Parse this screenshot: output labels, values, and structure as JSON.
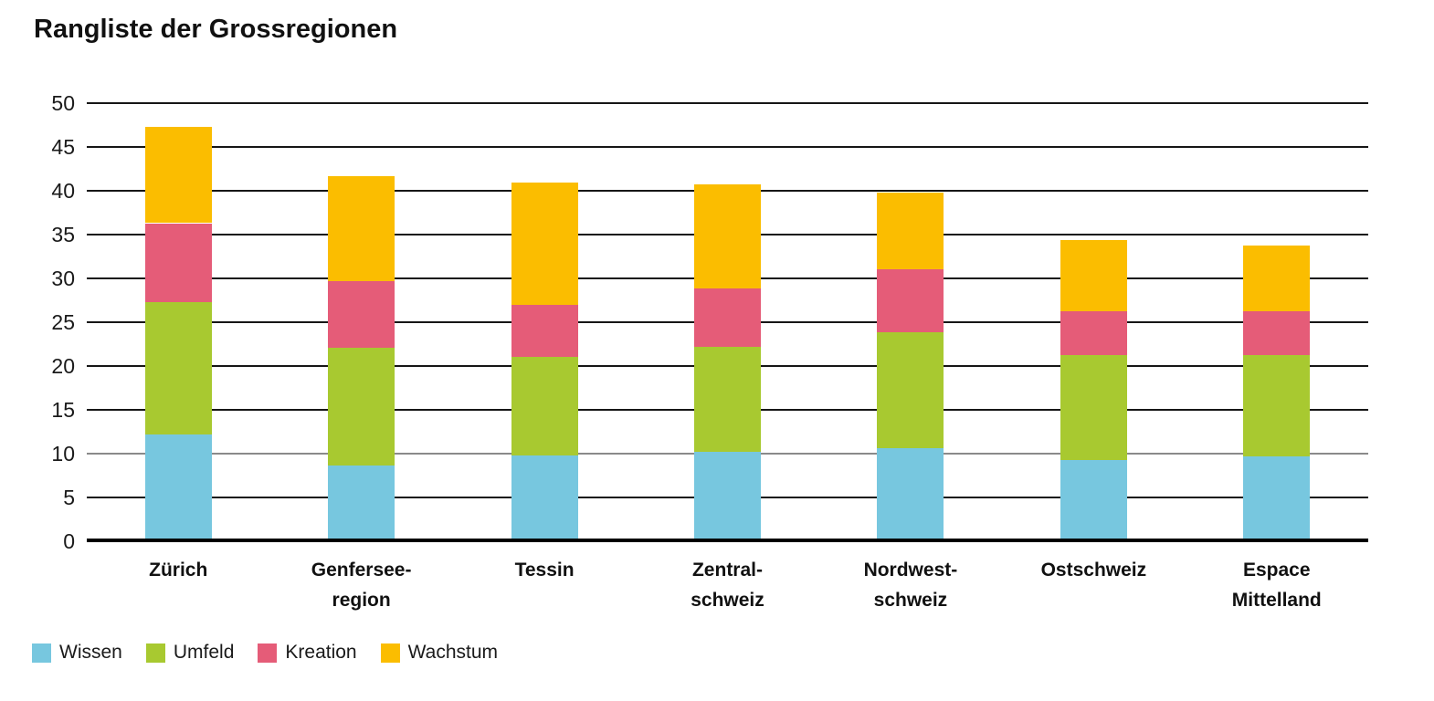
{
  "title": "Rangliste der Grossregionen",
  "chart_data": {
    "type": "bar",
    "stacked": true,
    "title": "Rangliste der Grossregionen",
    "categories": [
      "Zürich",
      "Genfersee-\nregion",
      "Tessin",
      "Zentral-\nschweiz",
      "Nordwest-\nschweiz",
      "Ostschweiz",
      "Espace\nMittelland"
    ],
    "series": [
      {
        "name": "Wissen",
        "color": "#77c7df",
        "values": [
          12.1,
          8.5,
          9.7,
          10.1,
          10.5,
          9.2,
          9.6
        ]
      },
      {
        "name": "Umfeld",
        "color": "#a8c930",
        "values": [
          15.1,
          13.5,
          11.2,
          12.0,
          13.3,
          11.9,
          11.5
        ]
      },
      {
        "name": "Kreation",
        "color": "#e55c78",
        "values": [
          9.0,
          7.6,
          6.0,
          6.6,
          7.1,
          5.0,
          5.0
        ]
      },
      {
        "name": "Wachstum",
        "color": "#fbbd00",
        "values": [
          11.0,
          12.0,
          13.9,
          11.9,
          8.8,
          8.2,
          7.5
        ]
      }
    ],
    "totals": [
      47.2,
      41.6,
      40.8,
      40.6,
      39.7,
      34.3,
      33.6
    ],
    "ylim": [
      0,
      50
    ],
    "yticks": [
      0,
      5,
      10,
      15,
      20,
      25,
      30,
      35,
      40,
      45,
      50
    ],
    "gray_gridline_value": 10,
    "grid": "horizontal",
    "legend_position": "bottom-left",
    "xlabel": "",
    "ylabel": ""
  }
}
